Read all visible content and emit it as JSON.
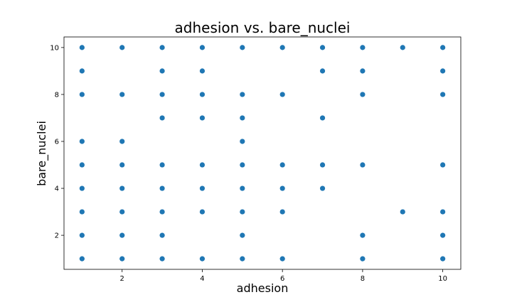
{
  "chart_data": {
    "type": "scatter",
    "title": "adhesion vs. bare_nuclei",
    "xlabel": "adhesion",
    "ylabel": "bare_nuclei",
    "xlim": [
      0.55,
      10.45
    ],
    "ylim": [
      0.55,
      10.45
    ],
    "xticks": [
      "2",
      "4",
      "6",
      "8",
      "10"
    ],
    "yticks": [
      "2",
      "4",
      "6",
      "8",
      "10"
    ],
    "grid": false,
    "marker_color": "#1f77b4",
    "points": [
      [
        1,
        10
      ],
      [
        1,
        9
      ],
      [
        1,
        8
      ],
      [
        1,
        6
      ],
      [
        1,
        5
      ],
      [
        1,
        4
      ],
      [
        1,
        3
      ],
      [
        1,
        2
      ],
      [
        1,
        1
      ],
      [
        2,
        10
      ],
      [
        2,
        8
      ],
      [
        2,
        6
      ],
      [
        2,
        5
      ],
      [
        2,
        4
      ],
      [
        2,
        3
      ],
      [
        2,
        2
      ],
      [
        2,
        1
      ],
      [
        3,
        10
      ],
      [
        3,
        9
      ],
      [
        3,
        8
      ],
      [
        3,
        7
      ],
      [
        3,
        5
      ],
      [
        3,
        4
      ],
      [
        3,
        3
      ],
      [
        3,
        2
      ],
      [
        3,
        1
      ],
      [
        4,
        10
      ],
      [
        4,
        9
      ],
      [
        4,
        8
      ],
      [
        4,
        7
      ],
      [
        4,
        5
      ],
      [
        4,
        4
      ],
      [
        4,
        3
      ],
      [
        4,
        1
      ],
      [
        5,
        10
      ],
      [
        5,
        8
      ],
      [
        5,
        7
      ],
      [
        5,
        6
      ],
      [
        5,
        5
      ],
      [
        5,
        4
      ],
      [
        5,
        3
      ],
      [
        5,
        2
      ],
      [
        5,
        1
      ],
      [
        6,
        10
      ],
      [
        6,
        8
      ],
      [
        6,
        5
      ],
      [
        6,
        4
      ],
      [
        6,
        3
      ],
      [
        6,
        1
      ],
      [
        7,
        10
      ],
      [
        7,
        9
      ],
      [
        7,
        7
      ],
      [
        7,
        5
      ],
      [
        7,
        4
      ],
      [
        8,
        10
      ],
      [
        8,
        9
      ],
      [
        8,
        8
      ],
      [
        8,
        5
      ],
      [
        8,
        2
      ],
      [
        8,
        1
      ],
      [
        9,
        10
      ],
      [
        9,
        3
      ],
      [
        10,
        10
      ],
      [
        10,
        9
      ],
      [
        10,
        8
      ],
      [
        10,
        5
      ],
      [
        10,
        3
      ],
      [
        10,
        2
      ],
      [
        10,
        1
      ]
    ]
  }
}
